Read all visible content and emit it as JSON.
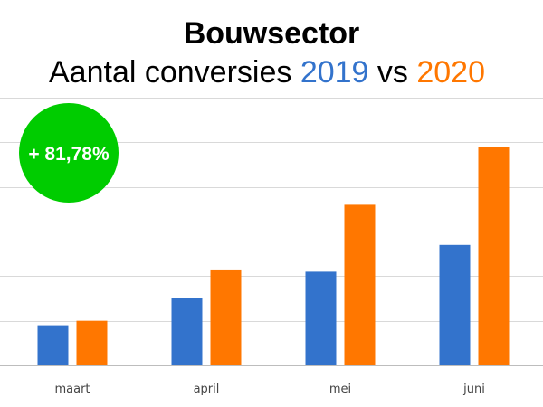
{
  "chart_data": {
    "type": "bar",
    "title": "Bouwsector",
    "subtitle": {
      "prefix": "Aantal conversies ",
      "year_a": "2019",
      "connector": " vs ",
      "year_b": "2020"
    },
    "categories": [
      "maart",
      "april",
      "mei",
      "juni"
    ],
    "series": [
      {
        "name": "2019",
        "color": "#3373cc",
        "values": [
          0.9,
          1.5,
          2.1,
          2.7
        ]
      },
      {
        "name": "2020",
        "color": "#ff7700",
        "values": [
          1.0,
          2.15,
          3.6,
          4.9
        ]
      }
    ],
    "ylim": [
      0,
      6
    ],
    "grid": true,
    "gridline_count": 6,
    "annotation": {
      "text": "+ 81,78%",
      "color": "#00cc00",
      "text_color": "#ffffff"
    }
  }
}
